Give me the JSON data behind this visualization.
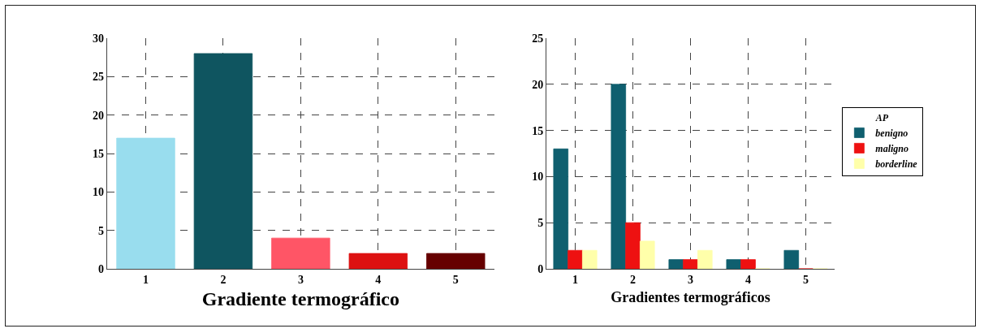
{
  "chart_data": [
    {
      "type": "bar",
      "xlabel": "Gradiente termográfico",
      "categories": [
        "1",
        "2",
        "3",
        "4",
        "5"
      ],
      "values": [
        17,
        28,
        4,
        2,
        2
      ],
      "colors": [
        "#99ddee",
        "#0f5560",
        "#ff5566",
        "#dd1111",
        "#660000"
      ],
      "ylim": [
        0,
        30
      ],
      "yticks": [
        0,
        5,
        10,
        15,
        20,
        25,
        30
      ],
      "grid": true
    },
    {
      "type": "bar",
      "xlabel": "Gradientes termográficos",
      "categories": [
        "1",
        "2",
        "3",
        "4",
        "5"
      ],
      "legend_title": "AP",
      "legend": "right",
      "ylim": [
        0,
        25
      ],
      "yticks": [
        0,
        5,
        10,
        15,
        20,
        25
      ],
      "grid": true,
      "series": [
        {
          "name": "benigno",
          "color": "#0f5f6f",
          "values": [
            13,
            20,
            1,
            1,
            2
          ]
        },
        {
          "name": "maligno",
          "color": "#ee1111",
          "values": [
            2,
            5,
            1,
            1,
            0
          ]
        },
        {
          "name": "borderline",
          "color": "#ffffaa",
          "values": [
            2,
            3,
            2,
            0,
            0
          ]
        }
      ]
    }
  ]
}
